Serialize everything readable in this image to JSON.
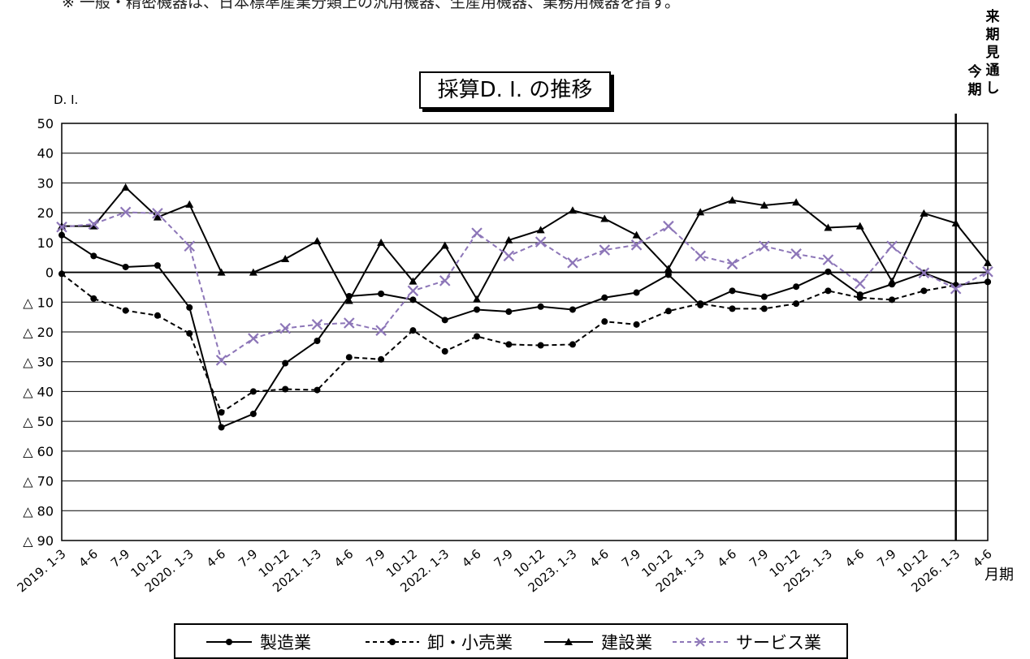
{
  "page": {
    "top_note": "※ 一般・精密機器は、日本標準産業分類上の汎用機器、生産用機器、業務用機器を指す。",
    "label_current": "今期",
    "label_next": "来期見通し",
    "x_unit": "月期"
  },
  "chart_data": {
    "type": "line",
    "title": "採算D. I. の推移",
    "ylabel": "D. I.",
    "xlabel": "月期",
    "ylim": [
      -90,
      50
    ],
    "y_ticks": [
      50,
      40,
      30,
      20,
      10,
      0,
      -10,
      -20,
      -30,
      -40,
      -50,
      -60,
      -70,
      -80,
      -90
    ],
    "y_tick_labels": [
      "50",
      "40",
      "30",
      "20",
      "10",
      "0",
      "△ 10",
      "△ 20",
      "△ 30",
      "△ 40",
      "△ 50",
      "△ 60",
      "△ 70",
      "△ 80",
      "△ 90"
    ],
    "categories": [
      "2019. 1-3",
      "4-6",
      "7-9",
      "10-12",
      "2020. 1-3",
      "4-6",
      "7-9",
      "10-12",
      "2021. 1-3",
      "4-6",
      "7-9",
      "10-12",
      "2022. 1-3",
      "4-6",
      "7-9",
      "10-12",
      "2023. 1-3",
      "4-6",
      "7-9",
      "10-12",
      "2024. 1-3",
      "4-6",
      "7-9",
      "10-12",
      "2025. 1-3",
      "4-6",
      "7-9",
      "10-12",
      "2026. 1-3",
      "4-6"
    ],
    "current_period": "2026. 1-3",
    "grid": true,
    "legend_position": "bottom",
    "series": [
      {
        "name": "製造業",
        "style": "solid",
        "marker": "circle",
        "color": "#000000",
        "values": [
          12.5,
          5.5,
          1.8,
          2.3,
          -11.8,
          -52,
          -47.5,
          -30.5,
          -23,
          -8,
          -7.2,
          -9.2,
          -16,
          -12.5,
          -13.2,
          -11.5,
          -12.5,
          -8.5,
          -6.8,
          -0.8,
          -11,
          -6.2,
          -8.2,
          -4.8,
          0.2,
          -7.5,
          -4,
          -0.2,
          -4.3,
          -3.2
        ]
      },
      {
        "name": "卸・小売業",
        "style": "dashed",
        "marker": "circle",
        "color": "#000000",
        "values": [
          -0.5,
          -8.8,
          -12.8,
          -14.5,
          -20.5,
          -47,
          -40,
          -39.2,
          -39.5,
          -28.5,
          -29.2,
          -19.5,
          -26.5,
          -21.5,
          -24.2,
          -24.5,
          -24.2,
          -16.5,
          -17.5,
          -13,
          -10.5,
          -12.2,
          -12.2,
          -10.5,
          -6.2,
          -8.5,
          -9.2,
          -6.2,
          -4.3,
          -3.2
        ]
      },
      {
        "name": "建設業",
        "style": "solid",
        "marker": "triangle",
        "color": "#000000",
        "values": [
          15.5,
          15.5,
          28.5,
          18.5,
          22.8,
          0,
          0,
          4.5,
          10.5,
          -9.5,
          10,
          -3,
          9,
          -9,
          10.8,
          14.2,
          20.8,
          18,
          12.5,
          1.2,
          20.2,
          24.2,
          22.5,
          23.5,
          15,
          15.5,
          -3,
          19.8,
          16.5,
          3.2
        ]
      },
      {
        "name": "サービス業",
        "style": "dashed",
        "marker": "cross",
        "color": "#8d76b8",
        "values": [
          15.2,
          16.2,
          20.2,
          19.8,
          8.8,
          -29.5,
          -22.2,
          -18.8,
          -17.5,
          -17,
          -19.5,
          -6.2,
          -2.8,
          13.2,
          5.5,
          10.2,
          3.2,
          7.5,
          9.2,
          15.5,
          5.5,
          2.8,
          8.8,
          6.2,
          4.2,
          -3.8,
          8.8,
          -0.2,
          -5.5,
          0.2
        ]
      }
    ]
  }
}
